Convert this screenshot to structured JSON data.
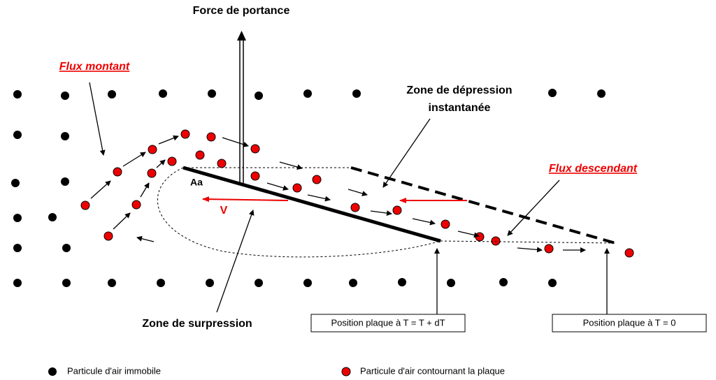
{
  "labels": {
    "lift_force": "Force de portance",
    "upflow": "Flux montant",
    "depression_zone": [
      "Zone de dépression",
      "instantanée"
    ],
    "downflow": "Flux descendant",
    "point": "Aa",
    "velocity": "V",
    "overpressure_zone": "Zone de surpression",
    "position_t_dt": "Position plaque à T = T + dT",
    "position_t0": "Position plaque à T = 0"
  },
  "legend": [
    "Particule d'air immobile",
    "Particule d'air contournant la plaque"
  ]
}
